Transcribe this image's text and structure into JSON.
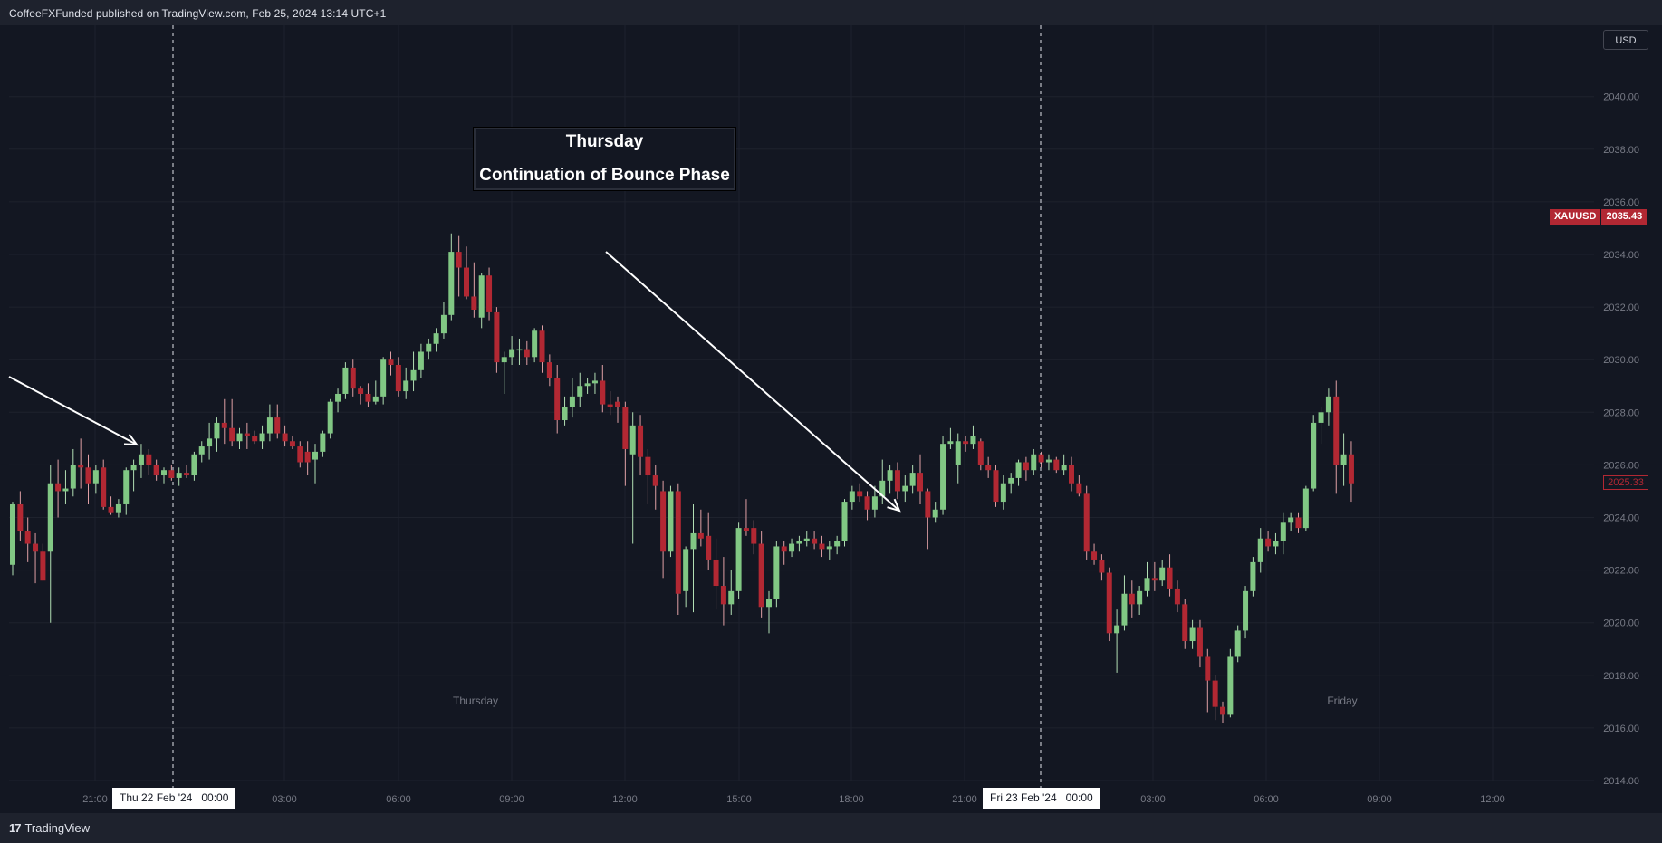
{
  "header": {
    "title": "CoffeeFXFunded published on TradingView.com, Feb 25, 2024 13:14 UTC+1"
  },
  "footer": {
    "logo_mark": "17",
    "brand": "TradingView"
  },
  "currency_button": "USD",
  "annotation": {
    "line1": "Thursday",
    "line2": "Continuation of Bounce Phase"
  },
  "symbol_tag": {
    "symbol": "XAUUSD",
    "price": "2035.43"
  },
  "last_price_tag": "2025.33",
  "date_markers": [
    {
      "label": "Thu 22 Feb '24   00:00"
    },
    {
      "label": "Fri 23 Feb '24   00:00"
    }
  ],
  "session_labels": [
    "Thursday",
    "Friday"
  ],
  "colors": {
    "background": "#131722",
    "up_candle": "#81c784",
    "down_candle": "#b22833",
    "grid": "#1e222d",
    "axis_text": "#787b86",
    "annotation_line": "#ffffff"
  },
  "chart_data": {
    "type": "candlestick",
    "symbol": "XAUUSD",
    "currency": "USD",
    "ylim": [
      2013.5,
      2041.5
    ],
    "y_ticks": [
      "2014.00",
      "2016.00",
      "2018.00",
      "2020.00",
      "2022.00",
      "2024.00",
      "2026.00",
      "2028.00",
      "2030.00",
      "2032.00",
      "2034.00",
      "2036.00",
      "2038.00",
      "2040.00"
    ],
    "x_tick_labels": [
      "21:00",
      "03:00",
      "06:00",
      "09:00",
      "12:00",
      "15:00",
      "18:00",
      "21:00",
      "03:00",
      "06:00",
      "09:00",
      "12:00"
    ],
    "grid": true,
    "candles": [
      {
        "o": 2022.2,
        "h": 2024.6,
        "l": 2021.8,
        "c": 2024.5
      },
      {
        "o": 2024.5,
        "h": 2025.0,
        "l": 2023.1,
        "c": 2023.5
      },
      {
        "o": 2023.5,
        "h": 2024.0,
        "l": 2022.3,
        "c": 2023.0
      },
      {
        "o": 2023.0,
        "h": 2023.4,
        "l": 2021.5,
        "c": 2022.7
      },
      {
        "o": 2022.7,
        "h": 2023.0,
        "l": 2021.6,
        "c": 2021.6
      },
      {
        "o": 2022.7,
        "h": 2026.0,
        "l": 2020.0,
        "c": 2025.3
      },
      {
        "o": 2025.3,
        "h": 2026.2,
        "l": 2024.0,
        "c": 2025.0
      },
      {
        "o": 2025.0,
        "h": 2025.8,
        "l": 2024.5,
        "c": 2025.1
      },
      {
        "o": 2025.1,
        "h": 2026.6,
        "l": 2024.8,
        "c": 2026.0
      },
      {
        "o": 2026.0,
        "h": 2027.0,
        "l": 2025.1,
        "c": 2025.9
      },
      {
        "o": 2025.9,
        "h": 2026.4,
        "l": 2024.5,
        "c": 2025.3
      },
      {
        "o": 2025.3,
        "h": 2026.0,
        "l": 2024.9,
        "c": 2025.8
      },
      {
        "o": 2025.9,
        "h": 2026.2,
        "l": 2024.3,
        "c": 2024.4
      },
      {
        "o": 2024.4,
        "h": 2024.8,
        "l": 2024.1,
        "c": 2024.2
      },
      {
        "o": 2024.2,
        "h": 2024.7,
        "l": 2024.0,
        "c": 2024.5
      },
      {
        "o": 2024.5,
        "h": 2025.9,
        "l": 2024.1,
        "c": 2025.8
      },
      {
        "o": 2025.8,
        "h": 2026.2,
        "l": 2025.0,
        "c": 2026.0
      },
      {
        "o": 2026.0,
        "h": 2026.8,
        "l": 2025.5,
        "c": 2026.4
      },
      {
        "o": 2026.4,
        "h": 2026.6,
        "l": 2025.6,
        "c": 2026.0
      },
      {
        "o": 2026.0,
        "h": 2026.2,
        "l": 2025.4,
        "c": 2025.6
      },
      {
        "o": 2025.6,
        "h": 2025.9,
        "l": 2025.3,
        "c": 2025.8
      },
      {
        "o": 2025.8,
        "h": 2026.0,
        "l": 2025.4,
        "c": 2025.5
      },
      {
        "o": 2025.5,
        "h": 2025.9,
        "l": 2025.2,
        "c": 2025.7
      },
      {
        "o": 2025.7,
        "h": 2026.0,
        "l": 2025.5,
        "c": 2025.6
      },
      {
        "o": 2025.6,
        "h": 2026.5,
        "l": 2025.4,
        "c": 2026.4
      },
      {
        "o": 2026.4,
        "h": 2026.9,
        "l": 2026.1,
        "c": 2026.7
      },
      {
        "o": 2026.7,
        "h": 2027.6,
        "l": 2026.2,
        "c": 2027.0
      },
      {
        "o": 2027.0,
        "h": 2027.8,
        "l": 2026.5,
        "c": 2027.6
      },
      {
        "o": 2027.6,
        "h": 2028.5,
        "l": 2026.8,
        "c": 2027.4
      },
      {
        "o": 2027.4,
        "h": 2028.5,
        "l": 2026.7,
        "c": 2026.9
      },
      {
        "o": 2026.9,
        "h": 2027.4,
        "l": 2026.6,
        "c": 2027.2
      },
      {
        "o": 2027.2,
        "h": 2027.6,
        "l": 2026.6,
        "c": 2027.1
      },
      {
        "o": 2027.1,
        "h": 2027.3,
        "l": 2026.8,
        "c": 2026.9
      },
      {
        "o": 2026.9,
        "h": 2027.5,
        "l": 2026.6,
        "c": 2027.2
      },
      {
        "o": 2027.2,
        "h": 2028.3,
        "l": 2026.9,
        "c": 2027.8
      },
      {
        "o": 2027.8,
        "h": 2028.3,
        "l": 2027.0,
        "c": 2027.2
      },
      {
        "o": 2027.2,
        "h": 2027.5,
        "l": 2026.7,
        "c": 2026.9
      },
      {
        "o": 2026.9,
        "h": 2027.1,
        "l": 2026.6,
        "c": 2026.7
      },
      {
        "o": 2026.7,
        "h": 2026.9,
        "l": 2025.9,
        "c": 2026.1
      },
      {
        "o": 2026.5,
        "h": 2026.9,
        "l": 2025.6,
        "c": 2026.1
      },
      {
        "o": 2026.2,
        "h": 2026.8,
        "l": 2025.3,
        "c": 2026.5
      },
      {
        "o": 2026.5,
        "h": 2027.3,
        "l": 2026.3,
        "c": 2027.2
      },
      {
        "o": 2027.2,
        "h": 2028.5,
        "l": 2027.0,
        "c": 2028.4
      },
      {
        "o": 2028.4,
        "h": 2028.9,
        "l": 2028.0,
        "c": 2028.7
      },
      {
        "o": 2028.7,
        "h": 2029.9,
        "l": 2028.5,
        "c": 2029.7
      },
      {
        "o": 2029.7,
        "h": 2030.0,
        "l": 2028.6,
        "c": 2028.9
      },
      {
        "o": 2028.9,
        "h": 2029.0,
        "l": 2028.3,
        "c": 2028.7
      },
      {
        "o": 2028.7,
        "h": 2029.1,
        "l": 2028.2,
        "c": 2028.4
      },
      {
        "o": 2028.4,
        "h": 2029.2,
        "l": 2028.3,
        "c": 2028.6
      },
      {
        "o": 2028.6,
        "h": 2030.1,
        "l": 2028.3,
        "c": 2030.0
      },
      {
        "o": 2030.0,
        "h": 2030.3,
        "l": 2029.4,
        "c": 2029.8
      },
      {
        "o": 2029.8,
        "h": 2030.1,
        "l": 2028.6,
        "c": 2028.8
      },
      {
        "o": 2028.8,
        "h": 2029.7,
        "l": 2028.5,
        "c": 2029.2
      },
      {
        "o": 2029.2,
        "h": 2030.3,
        "l": 2028.8,
        "c": 2029.6
      },
      {
        "o": 2029.6,
        "h": 2030.6,
        "l": 2029.3,
        "c": 2030.3
      },
      {
        "o": 2030.3,
        "h": 2030.8,
        "l": 2030.0,
        "c": 2030.6
      },
      {
        "o": 2030.6,
        "h": 2031.2,
        "l": 2030.3,
        "c": 2031.0
      },
      {
        "o": 2031.0,
        "h": 2032.2,
        "l": 2030.8,
        "c": 2031.7
      },
      {
        "o": 2031.7,
        "h": 2034.8,
        "l": 2031.5,
        "c": 2034.1
      },
      {
        "o": 2034.1,
        "h": 2034.7,
        "l": 2032.4,
        "c": 2033.5
      },
      {
        "o": 2033.5,
        "h": 2034.3,
        "l": 2032.3,
        "c": 2032.4
      },
      {
        "o": 2032.4,
        "h": 2033.7,
        "l": 2031.6,
        "c": 2031.9
      },
      {
        "o": 2031.6,
        "h": 2033.3,
        "l": 2031.2,
        "c": 2033.2
      },
      {
        "o": 2033.2,
        "h": 2033.5,
        "l": 2031.5,
        "c": 2031.8
      },
      {
        "o": 2031.8,
        "h": 2032.0,
        "l": 2029.5,
        "c": 2029.9
      },
      {
        "o": 2029.9,
        "h": 2030.3,
        "l": 2028.7,
        "c": 2030.1
      },
      {
        "o": 2030.1,
        "h": 2030.9,
        "l": 2029.8,
        "c": 2030.4
      },
      {
        "o": 2030.4,
        "h": 2030.8,
        "l": 2029.8,
        "c": 2030.4
      },
      {
        "o": 2030.4,
        "h": 2030.7,
        "l": 2029.8,
        "c": 2030.1
      },
      {
        "o": 2030.1,
        "h": 2031.2,
        "l": 2029.9,
        "c": 2031.1
      },
      {
        "o": 2031.1,
        "h": 2031.3,
        "l": 2029.5,
        "c": 2029.9
      },
      {
        "o": 2029.9,
        "h": 2030.2,
        "l": 2029.0,
        "c": 2029.3
      },
      {
        "o": 2029.3,
        "h": 2029.8,
        "l": 2027.2,
        "c": 2027.7
      },
      {
        "o": 2027.7,
        "h": 2028.6,
        "l": 2027.5,
        "c": 2028.2
      },
      {
        "o": 2028.2,
        "h": 2029.3,
        "l": 2027.8,
        "c": 2028.6
      },
      {
        "o": 2028.6,
        "h": 2029.5,
        "l": 2028.2,
        "c": 2029.0
      },
      {
        "o": 2029.0,
        "h": 2029.3,
        "l": 2028.7,
        "c": 2029.1
      },
      {
        "o": 2029.1,
        "h": 2029.5,
        "l": 2028.7,
        "c": 2029.2
      },
      {
        "o": 2029.2,
        "h": 2029.8,
        "l": 2028.0,
        "c": 2028.3
      },
      {
        "o": 2028.3,
        "h": 2028.8,
        "l": 2027.9,
        "c": 2028.2
      },
      {
        "o": 2028.4,
        "h": 2028.6,
        "l": 2027.6,
        "c": 2028.2
      },
      {
        "o": 2028.2,
        "h": 2028.4,
        "l": 2025.2,
        "c": 2026.6
      },
      {
        "o": 2026.4,
        "h": 2028.0,
        "l": 2023.0,
        "c": 2027.5
      },
      {
        "o": 2027.5,
        "h": 2027.9,
        "l": 2025.6,
        "c": 2026.3
      },
      {
        "o": 2026.3,
        "h": 2026.6,
        "l": 2024.5,
        "c": 2025.6
      },
      {
        "o": 2025.6,
        "h": 2026.0,
        "l": 2024.3,
        "c": 2025.2
      },
      {
        "o": 2025.0,
        "h": 2025.4,
        "l": 2021.7,
        "c": 2022.7
      },
      {
        "o": 2022.7,
        "h": 2025.2,
        "l": 2022.5,
        "c": 2025.0
      },
      {
        "o": 2025.0,
        "h": 2025.3,
        "l": 2020.3,
        "c": 2021.1
      },
      {
        "o": 2021.2,
        "h": 2022.9,
        "l": 2020.6,
        "c": 2022.8
      },
      {
        "o": 2022.8,
        "h": 2024.5,
        "l": 2020.4,
        "c": 2023.4
      },
      {
        "o": 2023.4,
        "h": 2024.3,
        "l": 2022.9,
        "c": 2023.2
      },
      {
        "o": 2023.3,
        "h": 2024.2,
        "l": 2022.0,
        "c": 2022.4
      },
      {
        "o": 2022.4,
        "h": 2023.2,
        "l": 2020.5,
        "c": 2021.4
      },
      {
        "o": 2021.4,
        "h": 2022.5,
        "l": 2019.9,
        "c": 2020.7
      },
      {
        "o": 2020.7,
        "h": 2022.0,
        "l": 2020.3,
        "c": 2021.2
      },
      {
        "o": 2021.2,
        "h": 2023.8,
        "l": 2020.9,
        "c": 2023.6
      },
      {
        "o": 2023.6,
        "h": 2024.7,
        "l": 2023.3,
        "c": 2023.5
      },
      {
        "o": 2023.6,
        "h": 2023.9,
        "l": 2022.6,
        "c": 2023.0
      },
      {
        "o": 2023.0,
        "h": 2023.5,
        "l": 2020.2,
        "c": 2020.6
      },
      {
        "o": 2020.6,
        "h": 2021.2,
        "l": 2019.6,
        "c": 2020.9
      },
      {
        "o": 2020.9,
        "h": 2023.1,
        "l": 2020.6,
        "c": 2022.9
      },
      {
        "o": 2022.9,
        "h": 2023.1,
        "l": 2022.2,
        "c": 2022.7
      },
      {
        "o": 2022.7,
        "h": 2023.2,
        "l": 2022.5,
        "c": 2023.0
      },
      {
        "o": 2023.0,
        "h": 2023.3,
        "l": 2022.7,
        "c": 2023.1
      },
      {
        "o": 2023.1,
        "h": 2023.5,
        "l": 2022.9,
        "c": 2023.2
      },
      {
        "o": 2023.2,
        "h": 2023.5,
        "l": 2022.8,
        "c": 2023.0
      },
      {
        "o": 2023.0,
        "h": 2023.3,
        "l": 2022.5,
        "c": 2022.8
      },
      {
        "o": 2022.8,
        "h": 2023.1,
        "l": 2022.4,
        "c": 2022.9
      },
      {
        "o": 2022.9,
        "h": 2023.3,
        "l": 2022.6,
        "c": 2023.1
      },
      {
        "o": 2023.1,
        "h": 2024.7,
        "l": 2022.9,
        "c": 2024.6
      },
      {
        "o": 2024.6,
        "h": 2025.2,
        "l": 2024.3,
        "c": 2025.0
      },
      {
        "o": 2025.0,
        "h": 2025.3,
        "l": 2024.6,
        "c": 2024.8
      },
      {
        "o": 2024.8,
        "h": 2025.0,
        "l": 2023.9,
        "c": 2024.3
      },
      {
        "o": 2024.3,
        "h": 2025.2,
        "l": 2024.0,
        "c": 2024.8
      },
      {
        "o": 2024.8,
        "h": 2026.2,
        "l": 2024.5,
        "c": 2025.4
      },
      {
        "o": 2025.4,
        "h": 2026.0,
        "l": 2024.9,
        "c": 2025.8
      },
      {
        "o": 2025.8,
        "h": 2026.1,
        "l": 2024.7,
        "c": 2025.0
      },
      {
        "o": 2025.0,
        "h": 2025.6,
        "l": 2024.6,
        "c": 2025.2
      },
      {
        "o": 2025.2,
        "h": 2026.0,
        "l": 2024.9,
        "c": 2025.7
      },
      {
        "o": 2025.7,
        "h": 2026.4,
        "l": 2024.5,
        "c": 2025.0
      },
      {
        "o": 2025.0,
        "h": 2025.1,
        "l": 2022.8,
        "c": 2024.0
      },
      {
        "o": 2024.0,
        "h": 2024.6,
        "l": 2023.8,
        "c": 2024.3
      },
      {
        "o": 2024.3,
        "h": 2027.1,
        "l": 2024.1,
        "c": 2026.8
      },
      {
        "o": 2026.8,
        "h": 2027.4,
        "l": 2026.6,
        "c": 2026.9
      },
      {
        "o": 2026.0,
        "h": 2027.2,
        "l": 2025.3,
        "c": 2026.9
      },
      {
        "o": 2026.9,
        "h": 2027.1,
        "l": 2026.5,
        "c": 2026.8
      },
      {
        "o": 2026.8,
        "h": 2027.5,
        "l": 2026.6,
        "c": 2027.1
      },
      {
        "o": 2026.9,
        "h": 2027.0,
        "l": 2025.8,
        "c": 2026.0
      },
      {
        "o": 2026.0,
        "h": 2026.3,
        "l": 2025.5,
        "c": 2025.8
      },
      {
        "o": 2025.8,
        "h": 2026.0,
        "l": 2024.4,
        "c": 2024.6
      },
      {
        "o": 2024.6,
        "h": 2025.6,
        "l": 2024.3,
        "c": 2025.3
      },
      {
        "o": 2025.3,
        "h": 2025.7,
        "l": 2024.9,
        "c": 2025.5
      },
      {
        "o": 2025.5,
        "h": 2026.2,
        "l": 2025.2,
        "c": 2026.1
      },
      {
        "o": 2026.1,
        "h": 2026.3,
        "l": 2025.4,
        "c": 2025.8
      },
      {
        "o": 2025.8,
        "h": 2026.6,
        "l": 2025.6,
        "c": 2026.4
      },
      {
        "o": 2026.4,
        "h": 2026.5,
        "l": 2025.9,
        "c": 2026.1
      },
      {
        "o": 2026.1,
        "h": 2026.4,
        "l": 2025.8,
        "c": 2026.2
      },
      {
        "o": 2026.2,
        "h": 2026.3,
        "l": 2025.7,
        "c": 2025.8
      },
      {
        "o": 2025.8,
        "h": 2026.4,
        "l": 2025.6,
        "c": 2026.0
      },
      {
        "o": 2026.0,
        "h": 2026.3,
        "l": 2025.0,
        "c": 2025.3
      },
      {
        "o": 2025.3,
        "h": 2025.6,
        "l": 2024.8,
        "c": 2024.9
      },
      {
        "o": 2024.9,
        "h": 2025.2,
        "l": 2022.4,
        "c": 2022.7
      },
      {
        "o": 2022.7,
        "h": 2023.0,
        "l": 2022.2,
        "c": 2022.4
      },
      {
        "o": 2022.4,
        "h": 2022.6,
        "l": 2021.6,
        "c": 2021.9
      },
      {
        "o": 2021.9,
        "h": 2022.1,
        "l": 2019.3,
        "c": 2019.6
      },
      {
        "o": 2019.6,
        "h": 2020.5,
        "l": 2018.1,
        "c": 2019.9
      },
      {
        "o": 2019.9,
        "h": 2021.8,
        "l": 2019.7,
        "c": 2021.1
      },
      {
        "o": 2021.1,
        "h": 2021.6,
        "l": 2020.2,
        "c": 2020.7
      },
      {
        "o": 2020.7,
        "h": 2021.4,
        "l": 2020.3,
        "c": 2021.2
      },
      {
        "o": 2021.2,
        "h": 2022.3,
        "l": 2021.0,
        "c": 2021.7
      },
      {
        "o": 2021.7,
        "h": 2022.3,
        "l": 2021.2,
        "c": 2021.6
      },
      {
        "o": 2021.6,
        "h": 2022.4,
        "l": 2021.4,
        "c": 2022.1
      },
      {
        "o": 2022.1,
        "h": 2022.6,
        "l": 2021.0,
        "c": 2021.3
      },
      {
        "o": 2021.3,
        "h": 2021.6,
        "l": 2020.4,
        "c": 2020.7
      },
      {
        "o": 2020.7,
        "h": 2020.9,
        "l": 2019.0,
        "c": 2019.3
      },
      {
        "o": 2019.3,
        "h": 2020.1,
        "l": 2019.0,
        "c": 2019.8
      },
      {
        "o": 2019.8,
        "h": 2020.1,
        "l": 2018.3,
        "c": 2018.7
      },
      {
        "o": 2018.7,
        "h": 2019.0,
        "l": 2016.6,
        "c": 2017.8
      },
      {
        "o": 2017.8,
        "h": 2018.0,
        "l": 2016.3,
        "c": 2016.8
      },
      {
        "o": 2016.8,
        "h": 2017.0,
        "l": 2016.2,
        "c": 2016.5
      },
      {
        "o": 2016.5,
        "h": 2019.0,
        "l": 2016.4,
        "c": 2018.7
      },
      {
        "o": 2018.7,
        "h": 2019.9,
        "l": 2018.5,
        "c": 2019.7
      },
      {
        "o": 2019.7,
        "h": 2021.4,
        "l": 2019.4,
        "c": 2021.2
      },
      {
        "o": 2021.2,
        "h": 2022.5,
        "l": 2021.0,
        "c": 2022.3
      },
      {
        "o": 2022.3,
        "h": 2023.6,
        "l": 2021.9,
        "c": 2023.2
      },
      {
        "o": 2023.2,
        "h": 2023.5,
        "l": 2022.7,
        "c": 2022.9
      },
      {
        "o": 2022.9,
        "h": 2023.4,
        "l": 2022.6,
        "c": 2023.1
      },
      {
        "o": 2023.1,
        "h": 2024.2,
        "l": 2022.6,
        "c": 2023.8
      },
      {
        "o": 2023.8,
        "h": 2024.2,
        "l": 2023.5,
        "c": 2024.0
      },
      {
        "o": 2024.0,
        "h": 2024.2,
        "l": 2023.4,
        "c": 2023.6
      },
      {
        "o": 2023.6,
        "h": 2025.2,
        "l": 2023.5,
        "c": 2025.1
      },
      {
        "o": 2025.1,
        "h": 2027.9,
        "l": 2025.0,
        "c": 2027.6
      },
      {
        "o": 2027.6,
        "h": 2028.2,
        "l": 2026.8,
        "c": 2028.0
      },
      {
        "o": 2028.0,
        "h": 2028.9,
        "l": 2027.5,
        "c": 2028.6
      },
      {
        "o": 2028.6,
        "h": 2029.2,
        "l": 2024.9,
        "c": 2026.0
      },
      {
        "o": 2026.0,
        "h": 2027.2,
        "l": 2025.2,
        "c": 2026.4
      },
      {
        "o": 2026.4,
        "h": 2026.9,
        "l": 2024.6,
        "c": 2025.3
      }
    ],
    "annotations": [
      {
        "type": "arrow",
        "direction": "down-right"
      },
      {
        "type": "arrow",
        "direction": "down-right"
      },
      {
        "type": "vertical-dashed-line",
        "at": "Thu 22 Feb '24 00:00"
      },
      {
        "type": "vertical-dashed-line",
        "at": "Fri 23 Feb '24 00:00"
      }
    ]
  }
}
